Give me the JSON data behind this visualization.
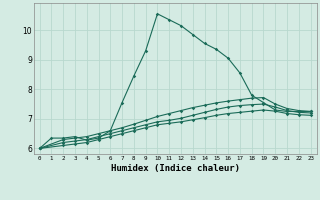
{
  "title": "",
  "xlabel": "Humidex (Indice chaleur)",
  "bg_color": "#d4ebe3",
  "grid_color": "#b8d8ce",
  "line_color": "#1a6b58",
  "xlim": [
    -0.5,
    23.5
  ],
  "ylim": [
    5.8,
    10.9
  ],
  "xticks": [
    0,
    1,
    2,
    3,
    4,
    5,
    6,
    7,
    8,
    9,
    10,
    11,
    12,
    13,
    14,
    15,
    16,
    17,
    18,
    19,
    20,
    21,
    22,
    23
  ],
  "yticks": [
    6,
    7,
    8,
    9,
    10
  ],
  "curve1_x": [
    0,
    1,
    2,
    3,
    4,
    5,
    6,
    7,
    8,
    9,
    10,
    11,
    12,
    13,
    14,
    15,
    16,
    17,
    18,
    19,
    20,
    21,
    22,
    23
  ],
  "curve1_y": [
    6.0,
    6.35,
    6.35,
    6.4,
    6.28,
    6.35,
    6.6,
    7.55,
    8.45,
    9.3,
    10.55,
    10.35,
    10.15,
    9.85,
    9.55,
    9.35,
    9.05,
    8.55,
    7.8,
    7.55,
    7.3,
    7.25,
    7.25,
    7.25
  ],
  "curve2_x": [
    0,
    2,
    3,
    4,
    5,
    6,
    7,
    8,
    9,
    10,
    11,
    12,
    13,
    14,
    15,
    16,
    17,
    18,
    19,
    20,
    21,
    22,
    23
  ],
  "curve2_y": [
    6.0,
    6.3,
    6.35,
    6.4,
    6.5,
    6.6,
    6.7,
    6.82,
    6.95,
    7.08,
    7.18,
    7.28,
    7.38,
    7.46,
    7.54,
    7.6,
    7.65,
    7.7,
    7.72,
    7.5,
    7.35,
    7.28,
    7.25
  ],
  "curve3_x": [
    0,
    2,
    3,
    4,
    5,
    6,
    7,
    8,
    9,
    10,
    11,
    12,
    13,
    14,
    15,
    16,
    17,
    18,
    19,
    20,
    21,
    22,
    23
  ],
  "curve3_y": [
    6.0,
    6.2,
    6.25,
    6.3,
    6.4,
    6.5,
    6.6,
    6.7,
    6.8,
    6.9,
    6.95,
    7.02,
    7.12,
    7.22,
    7.32,
    7.4,
    7.45,
    7.48,
    7.5,
    7.4,
    7.28,
    7.22,
    7.2
  ],
  "curve4_x": [
    0,
    2,
    3,
    4,
    5,
    6,
    7,
    8,
    9,
    10,
    11,
    12,
    13,
    14,
    15,
    16,
    17,
    18,
    19,
    20,
    21,
    22,
    23
  ],
  "curve4_y": [
    6.0,
    6.1,
    6.15,
    6.2,
    6.3,
    6.4,
    6.5,
    6.6,
    6.7,
    6.8,
    6.85,
    6.9,
    6.97,
    7.04,
    7.12,
    7.18,
    7.22,
    7.26,
    7.3,
    7.26,
    7.18,
    7.14,
    7.12
  ]
}
